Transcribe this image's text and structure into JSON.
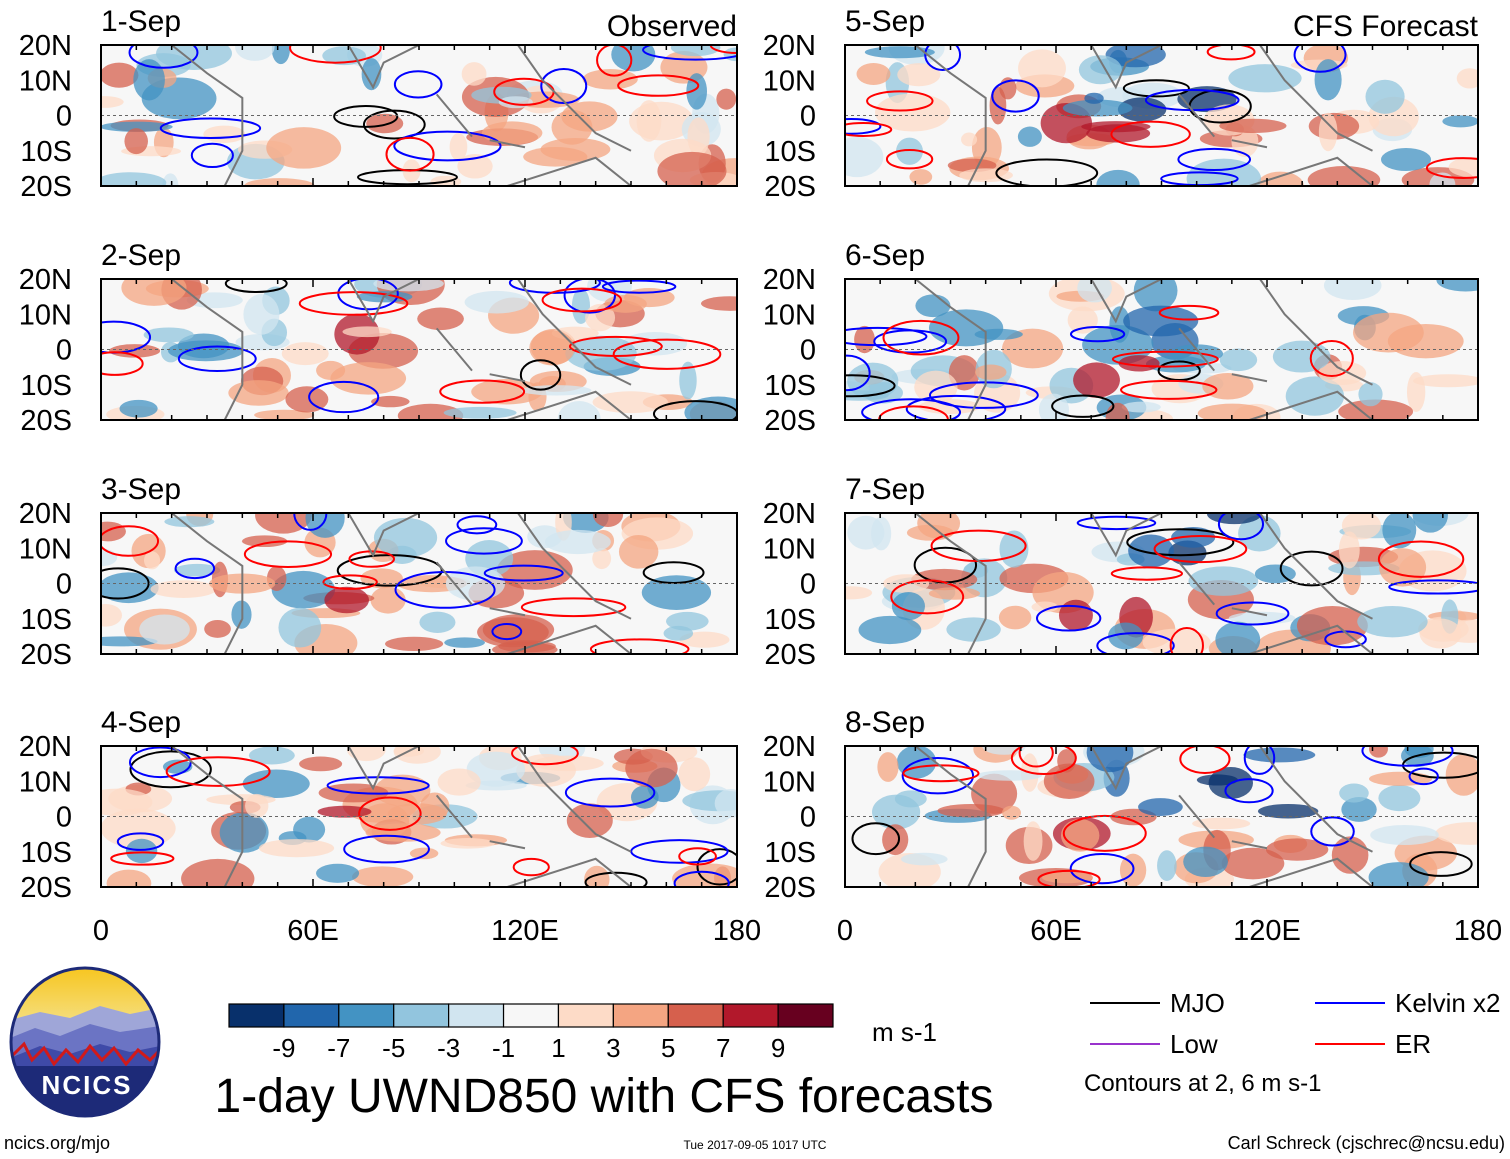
{
  "chart_data": {
    "type": "heatmap",
    "title": "1-day UWND850 with CFS forecasts",
    "variable": "UWND850",
    "units": "m s-1",
    "column_titles": {
      "left": "Observed",
      "right": "CFS Forecast"
    },
    "panels": [
      {
        "date": "1-Sep",
        "source": "Observed"
      },
      {
        "date": "2-Sep",
        "source": "Observed"
      },
      {
        "date": "3-Sep",
        "source": "Observed"
      },
      {
        "date": "4-Sep",
        "source": "Observed"
      },
      {
        "date": "5-Sep",
        "source": "CFS Forecast"
      },
      {
        "date": "6-Sep",
        "source": "CFS Forecast"
      },
      {
        "date": "7-Sep",
        "source": "CFS Forecast"
      },
      {
        "date": "8-Sep",
        "source": "CFS Forecast"
      }
    ],
    "lat_range": [
      -20,
      20
    ],
    "lon_range": [
      0,
      180
    ],
    "lat_ticks": [
      {
        "value": 20,
        "label": "20N"
      },
      {
        "value": 10,
        "label": "10N"
      },
      {
        "value": 0,
        "label": "0"
      },
      {
        "value": -10,
        "label": "10S"
      },
      {
        "value": -20,
        "label": "20S"
      }
    ],
    "lon_ticks": [
      {
        "value": 0,
        "label": "0"
      },
      {
        "value": 60,
        "label": "60E"
      },
      {
        "value": 120,
        "label": "120E"
      },
      {
        "value": 180,
        "label": "180"
      }
    ],
    "colorbar": {
      "levels": [
        -9,
        -7,
        -5,
        -3,
        -1,
        1,
        3,
        5,
        7,
        9
      ],
      "labels": [
        "-9",
        "-7",
        "-5",
        "-3",
        "-1",
        "1",
        "3",
        "5",
        "7",
        "9"
      ],
      "colors": [
        "#08306b",
        "#2166ac",
        "#4393c3",
        "#92c5de",
        "#d1e5f0",
        "#f7f7f7",
        "#fddbc7",
        "#f4a582",
        "#d6604d",
        "#b2182b",
        "#67001f"
      ],
      "units_label": "m s-1"
    },
    "legend": {
      "items": [
        {
          "label": "MJO",
          "color": "#000000"
        },
        {
          "label": "Kelvin x2",
          "color": "#0000ff"
        },
        {
          "label": "Low",
          "color": "#9932cc"
        },
        {
          "label": "ER",
          "color": "#ff0000"
        }
      ],
      "note": "Contours at 2, 6 m s-1"
    }
  },
  "logo": {
    "text": "NCICS"
  },
  "footer": {
    "url": "ncics.org/mjo",
    "timestamp": "Tue 2017-09-05 1017 UTC",
    "credit": "Carl Schreck (cjschrec@ncsu.edu)"
  }
}
